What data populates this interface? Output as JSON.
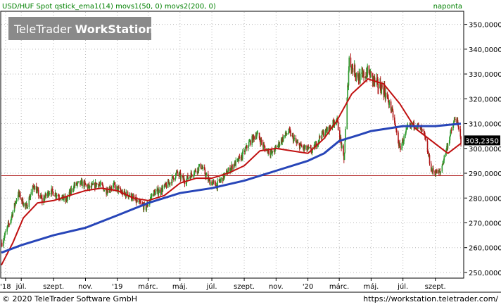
{
  "header": {
    "instrument": "USD/HUF Spot",
    "indicators": "qstick_ema1(14) movs1(50, 0) movs2(200, 0)",
    "period": "naponta",
    "logo_light": "TeleTrader",
    "logo_bold": "WorkStation"
  },
  "footer": {
    "copyright": "© 2020 TeleTrader Software GmbH",
    "url": "https://workstation.teletrader.com/"
  },
  "colors": {
    "candle_up": "#2f9a2f",
    "candle_down": "#b01818",
    "ma_short": "#c01010",
    "ma_long": "#2745b8",
    "hline": "#b02020",
    "axis_text_green": "#008000",
    "frame": "#000000"
  },
  "chart_data": {
    "type": "line",
    "title": "USD/HUF Spot",
    "subtitle": "qstick_ema1(14) movs1(50, 0) movs2(200, 0)",
    "period": "naponta",
    "ylim": [
      248000,
      355000
    ],
    "y_ticks": [
      "250,0000",
      "260,0000",
      "270,0000",
      "280,0000",
      "290,0000",
      "300,0000",
      "310,0000",
      "320,0000",
      "330,0000",
      "340,0000",
      "350,0000"
    ],
    "y_tick_values": [
      250000,
      260000,
      270000,
      280000,
      290000,
      300000,
      310000,
      320000,
      330000,
      340000,
      350000
    ],
    "x_ticks": [
      {
        "label": "'18",
        "t": "2018-06-01"
      },
      {
        "label": "júl.",
        "t": "2018-07-01"
      },
      {
        "label": "szept.",
        "t": "2018-09-01"
      },
      {
        "label": "nov.",
        "t": "2018-11-01"
      },
      {
        "label": "'19",
        "t": "2019-01-01"
      },
      {
        "label": "márc.",
        "t": "2019-03-01"
      },
      {
        "label": "máj.",
        "t": "2019-05-01"
      },
      {
        "label": "júl.",
        "t": "2019-07-01"
      },
      {
        "label": "szept.",
        "t": "2019-09-01"
      },
      {
        "label": "nov.",
        "t": "2019-11-01"
      },
      {
        "label": "'20",
        "t": "2020-01-01"
      },
      {
        "label": "márc.",
        "t": "2020-03-01"
      },
      {
        "label": "máj.",
        "t": "2020-05-01"
      },
      {
        "label": "júl.",
        "t": "2020-07-01"
      },
      {
        "label": "szept.",
        "t": "2020-09-01"
      }
    ],
    "x_range": [
      "2018-05-24",
      "2020-10-24"
    ],
    "last_value": 303.235,
    "last_value_label": "303,2350",
    "horizontal_line": 289.0,
    "price": {
      "t": [
        "2018-05-25",
        "2018-06-10",
        "2018-06-25",
        "2018-07-10",
        "2018-07-25",
        "2018-08-10",
        "2018-08-25",
        "2018-09-10",
        "2018-09-25",
        "2018-10-10",
        "2018-10-25",
        "2018-11-10",
        "2018-11-25",
        "2018-12-10",
        "2018-12-25",
        "2019-01-10",
        "2019-01-25",
        "2019-02-10",
        "2019-02-25",
        "2019-03-10",
        "2019-03-25",
        "2019-04-10",
        "2019-04-25",
        "2019-05-10",
        "2019-05-25",
        "2019-06-10",
        "2019-06-25",
        "2019-07-10",
        "2019-07-25",
        "2019-08-10",
        "2019-08-25",
        "2019-09-10",
        "2019-09-25",
        "2019-10-10",
        "2019-10-25",
        "2019-11-10",
        "2019-11-25",
        "2019-12-10",
        "2019-12-25",
        "2020-01-10",
        "2020-01-25",
        "2020-02-10",
        "2020-02-25",
        "2020-03-10",
        "2020-03-20",
        "2020-03-25",
        "2020-04-10",
        "2020-04-25",
        "2020-05-10",
        "2020-05-25",
        "2020-06-10",
        "2020-06-25",
        "2020-07-10",
        "2020-07-25",
        "2020-08-10",
        "2020-08-25",
        "2020-09-10",
        "2020-09-25",
        "2020-10-10",
        "2020-10-20"
      ],
      "y": [
        262,
        271,
        282,
        276,
        285,
        279,
        283,
        281,
        279,
        285,
        286,
        284,
        286,
        283,
        285,
        282,
        281,
        278,
        276,
        282,
        283,
        286,
        290,
        287,
        290,
        293,
        287,
        285,
        289,
        293,
        296,
        302,
        306,
        300,
        298,
        303,
        307,
        302,
        300,
        299,
        305,
        308,
        312,
        295,
        336,
        333,
        328,
        331,
        326,
        324,
        315,
        300,
        308,
        310,
        306,
        291,
        290,
        302,
        313,
        303.2
      ]
    },
    "ma_short": {
      "name": "movs1(50, 0)",
      "t": [
        "2018-05-24",
        "2018-06-15",
        "2018-07-05",
        "2018-08-01",
        "2018-09-01",
        "2018-10-01",
        "2018-11-01",
        "2018-12-01",
        "2019-01-01",
        "2019-02-01",
        "2019-03-01",
        "2019-04-01",
        "2019-05-01",
        "2019-06-01",
        "2019-07-01",
        "2019-08-01",
        "2019-09-01",
        "2019-10-01",
        "2019-11-01",
        "2019-12-01",
        "2020-01-01",
        "2020-02-01",
        "2020-02-25",
        "2020-03-25",
        "2020-04-25",
        "2020-05-25",
        "2020-06-25",
        "2020-07-25",
        "2020-08-25",
        "2020-09-25",
        "2020-10-20"
      ],
      "values": [
        253,
        262,
        272,
        278,
        279,
        281,
        283,
        284,
        283,
        280,
        279,
        281,
        286,
        288,
        288,
        290,
        293,
        299,
        300,
        299,
        298,
        304,
        311,
        322,
        328,
        326,
        318,
        308,
        303,
        298,
        302
      ]
    },
    "ma_long": {
      "name": "movs2(200, 0)",
      "t": [
        "2018-05-24",
        "2018-07-01",
        "2018-09-01",
        "2018-11-01",
        "2019-01-01",
        "2019-03-01",
        "2019-05-01",
        "2019-07-01",
        "2019-09-01",
        "2019-11-01",
        "2020-01-01",
        "2020-02-01",
        "2020-03-01",
        "2020-04-01",
        "2020-05-01",
        "2020-06-01",
        "2020-07-01",
        "2020-08-01",
        "2020-09-01",
        "2020-10-20"
      ],
      "values": [
        258,
        261,
        265,
        268,
        273,
        278,
        282,
        284,
        287,
        291,
        295,
        298,
        303,
        305,
        307,
        308,
        309,
        309,
        309,
        310
      ]
    }
  }
}
